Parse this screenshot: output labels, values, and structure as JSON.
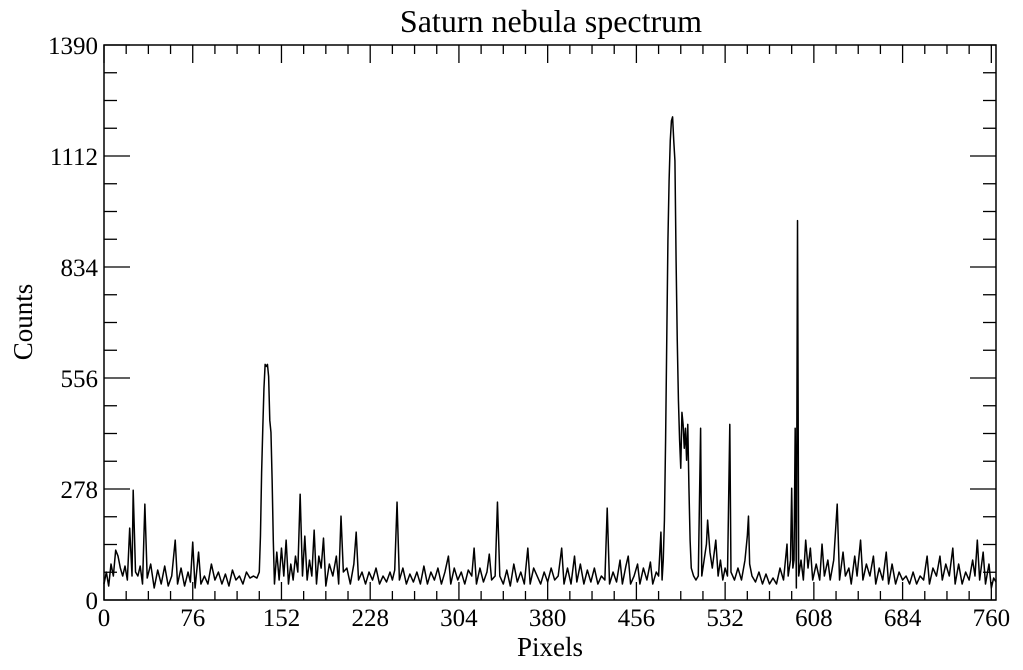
{
  "chart_data": {
    "type": "line",
    "title": "Saturn nebula spectrum",
    "xlabel": "Pixels",
    "ylabel": "Counts",
    "xlim": [
      0,
      764
    ],
    "ylim": [
      0,
      1390
    ],
    "xticks": [
      "0",
      "76",
      "152",
      "228",
      "304",
      "380",
      "456",
      "532",
      "608",
      "684",
      "760"
    ],
    "yticks": [
      "0",
      "278",
      "556",
      "834",
      "1112",
      "1390"
    ],
    "grid": false,
    "series": [
      {
        "points": [
          [
            0,
            40
          ],
          [
            2,
            70
          ],
          [
            4,
            35
          ],
          [
            6,
            90
          ],
          [
            8,
            60
          ],
          [
            10,
            125
          ],
          [
            12,
            110
          ],
          [
            14,
            80
          ],
          [
            16,
            60
          ],
          [
            18,
            85
          ],
          [
            20,
            50
          ],
          [
            22,
            180
          ],
          [
            24,
            60
          ],
          [
            25,
            275
          ],
          [
            27,
            70
          ],
          [
            29,
            60
          ],
          [
            31,
            85
          ],
          [
            33,
            40
          ],
          [
            35,
            240
          ],
          [
            37,
            55
          ],
          [
            40,
            90
          ],
          [
            43,
            30
          ],
          [
            46,
            75
          ],
          [
            49,
            40
          ],
          [
            52,
            85
          ],
          [
            55,
            35
          ],
          [
            58,
            60
          ],
          [
            61,
            150
          ],
          [
            63,
            40
          ],
          [
            66,
            80
          ],
          [
            69,
            35
          ],
          [
            72,
            70
          ],
          [
            74,
            45
          ],
          [
            76,
            145
          ],
          [
            78,
            30
          ],
          [
            81,
            120
          ],
          [
            83,
            40
          ],
          [
            86,
            60
          ],
          [
            89,
            40
          ],
          [
            92,
            90
          ],
          [
            95,
            50
          ],
          [
            98,
            70
          ],
          [
            101,
            40
          ],
          [
            104,
            65
          ],
          [
            107,
            35
          ],
          [
            110,
            75
          ],
          [
            113,
            50
          ],
          [
            116,
            60
          ],
          [
            119,
            40
          ],
          [
            122,
            70
          ],
          [
            125,
            55
          ],
          [
            128,
            60
          ],
          [
            131,
            55
          ],
          [
            133,
            70
          ],
          [
            134,
            160
          ],
          [
            135,
            320
          ],
          [
            136,
            430
          ],
          [
            137,
            530
          ],
          [
            138,
            590
          ],
          [
            139,
            585
          ],
          [
            140,
            590
          ],
          [
            141,
            560
          ],
          [
            142,
            450
          ],
          [
            143,
            420
          ],
          [
            144,
            300
          ],
          [
            145,
            150
          ],
          [
            146,
            40
          ],
          [
            148,
            120
          ],
          [
            150,
            50
          ],
          [
            152,
            130
          ],
          [
            154,
            60
          ],
          [
            156,
            150
          ],
          [
            158,
            40
          ],
          [
            160,
            90
          ],
          [
            162,
            50
          ],
          [
            164,
            110
          ],
          [
            166,
            70
          ],
          [
            168,
            265
          ],
          [
            170,
            60
          ],
          [
            172,
            160
          ],
          [
            174,
            50
          ],
          [
            176,
            100
          ],
          [
            178,
            60
          ],
          [
            180,
            175
          ],
          [
            182,
            40
          ],
          [
            184,
            110
          ],
          [
            186,
            80
          ],
          [
            188,
            155
          ],
          [
            190,
            35
          ],
          [
            193,
            90
          ],
          [
            196,
            60
          ],
          [
            199,
            110
          ],
          [
            201,
            40
          ],
          [
            203,
            210
          ],
          [
            205,
            70
          ],
          [
            208,
            80
          ],
          [
            211,
            40
          ],
          [
            214,
            90
          ],
          [
            216,
            170
          ],
          [
            218,
            50
          ],
          [
            221,
            70
          ],
          [
            224,
            40
          ],
          [
            227,
            70
          ],
          [
            230,
            50
          ],
          [
            233,
            80
          ],
          [
            236,
            40
          ],
          [
            239,
            60
          ],
          [
            242,
            45
          ],
          [
            245,
            70
          ],
          [
            247,
            50
          ],
          [
            249,
            75
          ],
          [
            251,
            245
          ],
          [
            253,
            50
          ],
          [
            256,
            80
          ],
          [
            259,
            40
          ],
          [
            262,
            65
          ],
          [
            265,
            45
          ],
          [
            268,
            70
          ],
          [
            271,
            40
          ],
          [
            274,
            85
          ],
          [
            277,
            40
          ],
          [
            280,
            70
          ],
          [
            283,
            50
          ],
          [
            286,
            80
          ],
          [
            289,
            40
          ],
          [
            292,
            70
          ],
          [
            295,
            110
          ],
          [
            297,
            40
          ],
          [
            300,
            80
          ],
          [
            303,
            50
          ],
          [
            306,
            70
          ],
          [
            309,
            40
          ],
          [
            312,
            75
          ],
          [
            315,
            60
          ],
          [
            317,
            130
          ],
          [
            319,
            40
          ],
          [
            322,
            80
          ],
          [
            325,
            45
          ],
          [
            328,
            70
          ],
          [
            330,
            115
          ],
          [
            332,
            50
          ],
          [
            335,
            60
          ],
          [
            337,
            245
          ],
          [
            339,
            60
          ],
          [
            342,
            40
          ],
          [
            345,
            75
          ],
          [
            348,
            35
          ],
          [
            351,
            90
          ],
          [
            354,
            45
          ],
          [
            357,
            70
          ],
          [
            360,
            40
          ],
          [
            363,
            130
          ],
          [
            365,
            40
          ],
          [
            368,
            80
          ],
          [
            371,
            60
          ],
          [
            374,
            40
          ],
          [
            377,
            70
          ],
          [
            380,
            45
          ],
          [
            383,
            80
          ],
          [
            386,
            50
          ],
          [
            389,
            60
          ],
          [
            392,
            130
          ],
          [
            394,
            40
          ],
          [
            397,
            80
          ],
          [
            400,
            40
          ],
          [
            403,
            110
          ],
          [
            405,
            45
          ],
          [
            408,
            90
          ],
          [
            411,
            40
          ],
          [
            414,
            75
          ],
          [
            417,
            45
          ],
          [
            420,
            80
          ],
          [
            423,
            40
          ],
          [
            426,
            60
          ],
          [
            429,
            50
          ],
          [
            431,
            230
          ],
          [
            433,
            40
          ],
          [
            436,
            70
          ],
          [
            439,
            45
          ],
          [
            442,
            100
          ],
          [
            444,
            40
          ],
          [
            447,
            85
          ],
          [
            449,
            110
          ],
          [
            451,
            40
          ],
          [
            454,
            60
          ],
          [
            457,
            90
          ],
          [
            459,
            40
          ],
          [
            462,
            80
          ],
          [
            465,
            50
          ],
          [
            468,
            95
          ],
          [
            470,
            40
          ],
          [
            473,
            70
          ],
          [
            475,
            60
          ],
          [
            477,
            170
          ],
          [
            478,
            50
          ],
          [
            479,
            100
          ],
          [
            480,
            200
          ],
          [
            481,
            400
          ],
          [
            482,
            650
          ],
          [
            483,
            900
          ],
          [
            484,
            1050
          ],
          [
            485,
            1150
          ],
          [
            486,
            1200
          ],
          [
            487,
            1210
          ],
          [
            488,
            1150
          ],
          [
            489,
            1100
          ],
          [
            490,
            850
          ],
          [
            491,
            650
          ],
          [
            492,
            500
          ],
          [
            493,
            400
          ],
          [
            494,
            330
          ],
          [
            495,
            470
          ],
          [
            496,
            440
          ],
          [
            497,
            380
          ],
          [
            498,
            430
          ],
          [
            499,
            350
          ],
          [
            500,
            440
          ],
          [
            501,
            280
          ],
          [
            502,
            150
          ],
          [
            503,
            80
          ],
          [
            505,
            60
          ],
          [
            507,
            50
          ],
          [
            509,
            60
          ],
          [
            511,
            430
          ],
          [
            512,
            60
          ],
          [
            514,
            100
          ],
          [
            516,
            140
          ],
          [
            517,
            200
          ],
          [
            519,
            120
          ],
          [
            521,
            80
          ],
          [
            524,
            150
          ],
          [
            526,
            60
          ],
          [
            528,
            100
          ],
          [
            530,
            50
          ],
          [
            532,
            80
          ],
          [
            534,
            60
          ],
          [
            536,
            440
          ],
          [
            537,
            70
          ],
          [
            540,
            50
          ],
          [
            543,
            80
          ],
          [
            546,
            50
          ],
          [
            549,
            100
          ],
          [
            551,
            160
          ],
          [
            552,
            210
          ],
          [
            553,
            90
          ],
          [
            555,
            60
          ],
          [
            558,
            45
          ],
          [
            561,
            70
          ],
          [
            564,
            40
          ],
          [
            567,
            65
          ],
          [
            570,
            40
          ],
          [
            573,
            55
          ],
          [
            576,
            40
          ],
          [
            579,
            80
          ],
          [
            582,
            50
          ],
          [
            585,
            140
          ],
          [
            586,
            60
          ],
          [
            588,
            100
          ],
          [
            589,
            280
          ],
          [
            590,
            80
          ],
          [
            591,
            100
          ],
          [
            592,
            430
          ],
          [
            593,
            30
          ],
          [
            594,
            950
          ],
          [
            595,
            60
          ],
          [
            597,
            100
          ],
          [
            599,
            50
          ],
          [
            601,
            150
          ],
          [
            603,
            80
          ],
          [
            605,
            130
          ],
          [
            607,
            50
          ],
          [
            610,
            90
          ],
          [
            613,
            50
          ],
          [
            615,
            140
          ],
          [
            617,
            60
          ],
          [
            620,
            100
          ],
          [
            622,
            50
          ],
          [
            625,
            100
          ],
          [
            628,
            240
          ],
          [
            630,
            50
          ],
          [
            633,
            120
          ],
          [
            635,
            60
          ],
          [
            638,
            80
          ],
          [
            640,
            40
          ],
          [
            643,
            110
          ],
          [
            645,
            60
          ],
          [
            648,
            150
          ],
          [
            650,
            50
          ],
          [
            653,
            90
          ],
          [
            656,
            60
          ],
          [
            659,
            110
          ],
          [
            661,
            40
          ],
          [
            664,
            80
          ],
          [
            667,
            50
          ],
          [
            670,
            120
          ],
          [
            672,
            40
          ],
          [
            675,
            90
          ],
          [
            678,
            40
          ],
          [
            681,
            70
          ],
          [
            684,
            50
          ],
          [
            687,
            60
          ],
          [
            690,
            40
          ],
          [
            693,
            70
          ],
          [
            696,
            40
          ],
          [
            699,
            60
          ],
          [
            702,
            50
          ],
          [
            705,
            110
          ],
          [
            707,
            40
          ],
          [
            710,
            80
          ],
          [
            713,
            60
          ],
          [
            716,
            110
          ],
          [
            718,
            50
          ],
          [
            721,
            90
          ],
          [
            724,
            60
          ],
          [
            727,
            130
          ],
          [
            729,
            40
          ],
          [
            732,
            90
          ],
          [
            735,
            40
          ],
          [
            738,
            70
          ],
          [
            741,
            50
          ],
          [
            744,
            100
          ],
          [
            746,
            60
          ],
          [
            748,
            150
          ],
          [
            750,
            50
          ],
          [
            753,
            120
          ],
          [
            755,
            40
          ],
          [
            758,
            90
          ],
          [
            760,
            30
          ],
          [
            762,
            55
          ],
          [
            764,
            45
          ]
        ]
      }
    ]
  }
}
